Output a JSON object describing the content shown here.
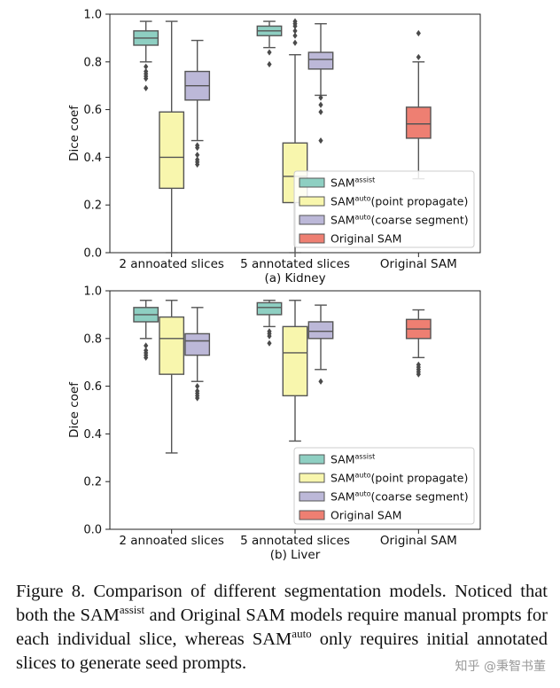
{
  "palette": {
    "assist": "#8ecfc2",
    "auto_point": "#f8f6ad",
    "auto_coarse": "#bcb8d8",
    "original": "#ee7f72",
    "line": "#555555"
  },
  "chart_data": [
    {
      "type": "box",
      "title": "(a) Kidney",
      "xlabel": "",
      "ylabel": "Dice coef",
      "ylim": [
        0,
        1.0
      ],
      "yticks": [
        "0.0",
        "0.2",
        "0.4",
        "0.6",
        "0.8",
        "1.0"
      ],
      "categories": [
        "2 annoated slices",
        "5 annotated slices",
        "Original SAM"
      ],
      "legend": {
        "position": "lower-right",
        "entries": [
          {
            "base": "SAM",
            "sup": "assist",
            "suffix": "",
            "color_key": "assist"
          },
          {
            "base": "SAM",
            "sup": "auto",
            "suffix": "(point propagate)",
            "color_key": "auto_point"
          },
          {
            "base": "SAM",
            "sup": "auto",
            "suffix": "(coarse segment)",
            "color_key": "auto_coarse"
          },
          {
            "base": "Original SAM",
            "sup": "",
            "suffix": "",
            "color_key": "original"
          }
        ]
      },
      "boxes": [
        {
          "category": 0,
          "series": "assist",
          "min": 0.8,
          "q1": 0.87,
          "median": 0.9,
          "q3": 0.93,
          "max": 0.97,
          "outliers": [
            0.78,
            0.76,
            0.75,
            0.74,
            0.73,
            0.69
          ]
        },
        {
          "category": 0,
          "series": "auto_point",
          "min": 0.0,
          "q1": 0.27,
          "median": 0.4,
          "q3": 0.59,
          "max": 0.97,
          "outliers": []
        },
        {
          "category": 0,
          "series": "auto_coarse",
          "min": 0.47,
          "q1": 0.64,
          "median": 0.7,
          "q3": 0.76,
          "max": 0.89,
          "outliers": [
            0.45,
            0.44,
            0.41,
            0.39,
            0.38,
            0.37
          ]
        },
        {
          "category": 1,
          "series": "assist",
          "min": 0.86,
          "q1": 0.91,
          "median": 0.93,
          "q3": 0.95,
          "max": 0.97,
          "outliers": [
            0.84,
            0.79
          ]
        },
        {
          "category": 1,
          "series": "auto_point",
          "min": 0.0,
          "q1": 0.21,
          "median": 0.32,
          "q3": 0.46,
          "max": 0.83,
          "outliers": [
            0.97,
            0.96,
            0.95,
            0.93,
            0.91,
            0.88
          ]
        },
        {
          "category": 1,
          "series": "auto_coarse",
          "min": 0.66,
          "q1": 0.77,
          "median": 0.81,
          "q3": 0.84,
          "max": 0.96,
          "outliers": [
            0.65,
            0.62,
            0.59,
            0.47
          ]
        },
        {
          "category": 2,
          "series": "original",
          "min": 0.31,
          "q1": 0.48,
          "median": 0.54,
          "q3": 0.61,
          "max": 0.8,
          "outliers": [
            0.82,
            0.92
          ]
        }
      ]
    },
    {
      "type": "box",
      "title": "(b) Liver",
      "xlabel": "",
      "ylabel": "Dice coef",
      "ylim": [
        0,
        1.0
      ],
      "yticks": [
        "0.0",
        "0.2",
        "0.4",
        "0.6",
        "0.8",
        "1.0"
      ],
      "categories": [
        "2 annoated slices",
        "5 annotated slices",
        "Original SAM"
      ],
      "legend": {
        "position": "lower-right",
        "entries": [
          {
            "base": "SAM",
            "sup": "assist",
            "suffix": "",
            "color_key": "assist"
          },
          {
            "base": "SAM",
            "sup": "auto",
            "suffix": "(point propagate)",
            "color_key": "auto_point"
          },
          {
            "base": "SAM",
            "sup": "auto",
            "suffix": "(coarse segment)",
            "color_key": "auto_coarse"
          },
          {
            "base": "Original SAM",
            "sup": "",
            "suffix": "",
            "color_key": "original"
          }
        ]
      },
      "boxes": [
        {
          "category": 0,
          "series": "assist",
          "min": 0.8,
          "q1": 0.87,
          "median": 0.9,
          "q3": 0.93,
          "max": 0.96,
          "outliers": [
            0.77,
            0.75,
            0.74,
            0.73,
            0.72
          ]
        },
        {
          "category": 0,
          "series": "auto_point",
          "min": 0.32,
          "q1": 0.65,
          "median": 0.8,
          "q3": 0.89,
          "max": 0.96,
          "outliers": []
        },
        {
          "category": 0,
          "series": "auto_coarse",
          "min": 0.62,
          "q1": 0.73,
          "median": 0.79,
          "q3": 0.82,
          "max": 0.93,
          "outliers": [
            0.6,
            0.58,
            0.57,
            0.56,
            0.55
          ]
        },
        {
          "category": 1,
          "series": "assist",
          "min": 0.85,
          "q1": 0.9,
          "median": 0.93,
          "q3": 0.95,
          "max": 0.96,
          "outliers": [
            0.83,
            0.82,
            0.81,
            0.78
          ]
        },
        {
          "category": 1,
          "series": "auto_point",
          "min": 0.37,
          "q1": 0.56,
          "median": 0.74,
          "q3": 0.85,
          "max": 0.96,
          "outliers": []
        },
        {
          "category": 1,
          "series": "auto_coarse",
          "min": 0.67,
          "q1": 0.8,
          "median": 0.83,
          "q3": 0.87,
          "max": 0.94,
          "outliers": [
            0.62
          ]
        },
        {
          "category": 2,
          "series": "original",
          "min": 0.72,
          "q1": 0.8,
          "median": 0.84,
          "q3": 0.88,
          "max": 0.92,
          "outliers": [
            0.69,
            0.68,
            0.67,
            0.66,
            0.65
          ]
        }
      ]
    }
  ],
  "caption": {
    "part1": "Figure 8. Comparison of different segmentation models. Noticed that both the SAM",
    "sup1": "assist",
    "part2": " and Original SAM models require manual prompts for each individual slice, whereas SAM",
    "sup2": "auto",
    "part3": " only requires initial annotated slices to generate seed prompts."
  },
  "watermark": "知乎 @秉智书董"
}
